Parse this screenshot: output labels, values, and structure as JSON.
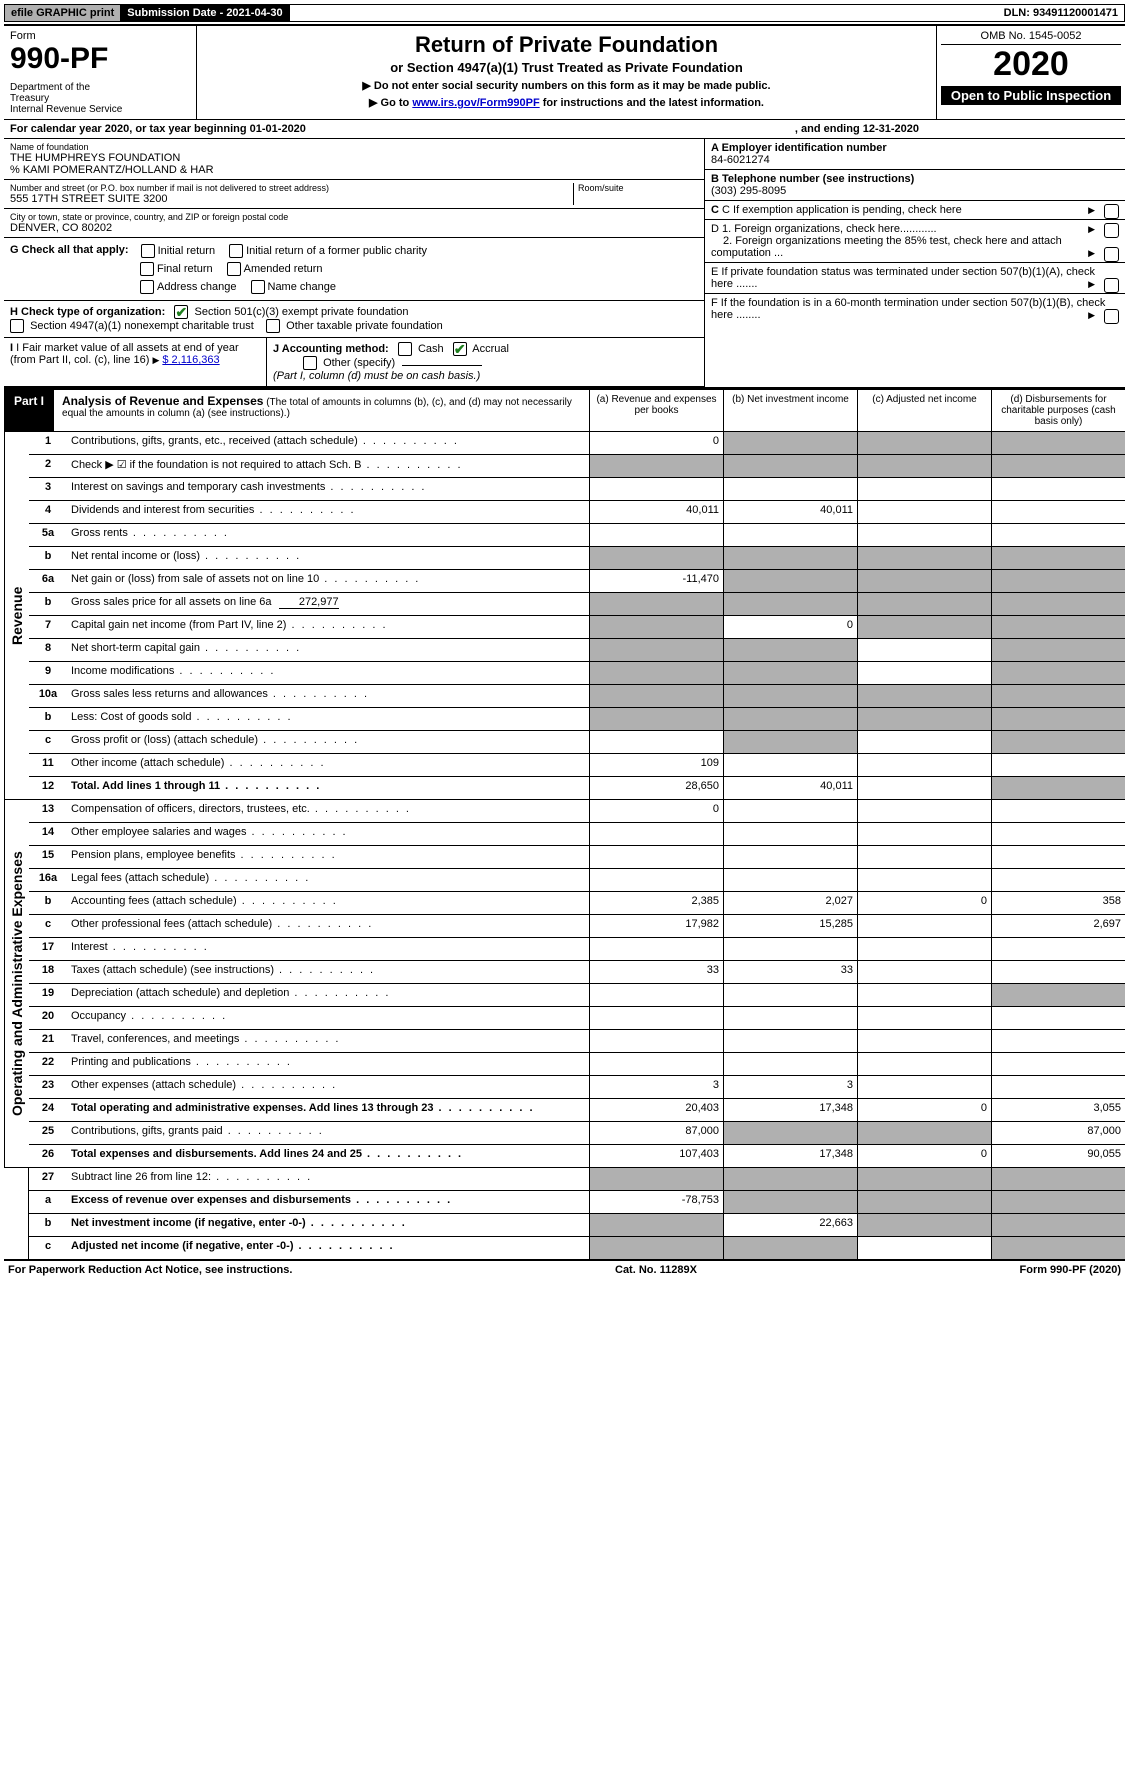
{
  "topbar": {
    "efile": "efile GRAPHIC print",
    "subdate": "Submission Date - 2021-04-30",
    "dln": "DLN: 93491120001471"
  },
  "header": {
    "form_label": "Form",
    "form_number": "990-PF",
    "dept": "Department of the Treasury\nInternal Revenue Service",
    "title": "Return of Private Foundation",
    "subtitle": "or Section 4947(a)(1) Trust Treated as Private Foundation",
    "note1": "▶ Do not enter social security numbers on this form as it may be made public.",
    "note2_pre": "▶ Go to ",
    "note2_link": "www.irs.gov/Form990PF",
    "note2_post": " for instructions and the latest information.",
    "omb": "OMB No. 1545-0052",
    "year": "2020",
    "open": "Open to Public Inspection"
  },
  "cal": {
    "pre": "For calendar year 2020, or tax year beginning 01-01-2020",
    "end": ", and ending 12-31-2020"
  },
  "ident": {
    "name_lbl": "Name of foundation",
    "name": "THE HUMPHREYS FOUNDATION",
    "care_of": "% KAMI POMERANTZ/HOLLAND & HAR",
    "addr_lbl": "Number and street (or P.O. box number if mail is not delivered to street address)",
    "addr": "555 17TH STREET SUITE 3200",
    "room_lbl": "Room/suite",
    "city_lbl": "City or town, state or province, country, and ZIP or foreign postal code",
    "city": "DENVER, CO  80202",
    "a_lbl": "A Employer identification number",
    "a_val": "84-6021274",
    "b_lbl": "B Telephone number (see instructions)",
    "b_val": "(303) 295-8095",
    "c_lbl": "C If exemption application is pending, check here",
    "d1": "D 1. Foreign organizations, check here............",
    "d2": "2. Foreign organizations meeting the 85% test, check here and attach computation ...",
    "e": "E  If private foundation status was terminated under section 507(b)(1)(A), check here .......",
    "f": "F  If the foundation is in a 60-month termination under section 507(b)(1)(B), check here ........"
  },
  "checks": {
    "g_lbl": "G Check all that apply:",
    "initial": "Initial return",
    "initial_former": "Initial return of a former public charity",
    "final": "Final return",
    "amended": "Amended return",
    "addr_change": "Address change",
    "name_change": "Name change",
    "h_lbl": "H Check type of organization:",
    "h1": "Section 501(c)(3) exempt private foundation",
    "h2": "Section 4947(a)(1) nonexempt charitable trust",
    "h3": "Other taxable private foundation",
    "i_lbl": "I Fair market value of all assets at end of year (from Part II, col. (c), line 16)",
    "i_val": "$  2,116,363",
    "j_lbl": "J Accounting method:",
    "j_cash": "Cash",
    "j_accrual": "Accrual",
    "j_other": "Other (specify)",
    "j_note": "(Part I, column (d) must be on cash basis.)"
  },
  "part1": {
    "label": "Part I",
    "title": "Analysis of Revenue and Expenses",
    "title_note": "(The total of amounts in columns (b), (c), and (d) may not necessarily equal the amounts in column (a) (see instructions).)",
    "col_a": "(a)    Revenue and expenses per books",
    "col_b": "(b)   Net investment income",
    "col_c": "(c)   Adjusted net income",
    "col_d": "(d)   Disbursements for charitable purposes (cash basis only)"
  },
  "sections": {
    "revenue": "Revenue",
    "expenses": "Operating and Administrative Expenses"
  },
  "rows": {
    "r1": {
      "n": "1",
      "d": "Contributions, gifts, grants, etc., received (attach schedule)",
      "a": "0"
    },
    "r2": {
      "n": "2",
      "d": "Check ▶ ☑ if the foundation is not required to attach Sch. B"
    },
    "r3": {
      "n": "3",
      "d": "Interest on savings and temporary cash investments"
    },
    "r4": {
      "n": "4",
      "d": "Dividends and interest from securities",
      "a": "40,011",
      "b": "40,011"
    },
    "r5a": {
      "n": "5a",
      "d": "Gross rents"
    },
    "r5b": {
      "n": "b",
      "d": "Net rental income or (loss)"
    },
    "r6a": {
      "n": "6a",
      "d": "Net gain or (loss) from sale of assets not on line 10",
      "a": "-11,470"
    },
    "r6b": {
      "n": "b",
      "d": "Gross sales price for all assets on line 6a",
      "v": "272,977"
    },
    "r7": {
      "n": "7",
      "d": "Capital gain net income (from Part IV, line 2)",
      "b": "0"
    },
    "r8": {
      "n": "8",
      "d": "Net short-term capital gain"
    },
    "r9": {
      "n": "9",
      "d": "Income modifications"
    },
    "r10a": {
      "n": "10a",
      "d": "Gross sales less returns and allowances"
    },
    "r10b": {
      "n": "b",
      "d": "Less: Cost of goods sold"
    },
    "r10c": {
      "n": "c",
      "d": "Gross profit or (loss) (attach schedule)"
    },
    "r11": {
      "n": "11",
      "d": "Other income (attach schedule)",
      "a": "109"
    },
    "r12": {
      "n": "12",
      "d": "Total. Add lines 1 through 11",
      "a": "28,650",
      "b": "40,011",
      "bold": true
    },
    "r13": {
      "n": "13",
      "d": "Compensation of officers, directors, trustees, etc.",
      "a": "0"
    },
    "r14": {
      "n": "14",
      "d": "Other employee salaries and wages"
    },
    "r15": {
      "n": "15",
      "d": "Pension plans, employee benefits"
    },
    "r16a": {
      "n": "16a",
      "d": "Legal fees (attach schedule)"
    },
    "r16b": {
      "n": "b",
      "d": "Accounting fees (attach schedule)",
      "a": "2,385",
      "b": "2,027",
      "c": "0",
      "dd": "358"
    },
    "r16c": {
      "n": "c",
      "d": "Other professional fees (attach schedule)",
      "a": "17,982",
      "b": "15,285",
      "dd": "2,697"
    },
    "r17": {
      "n": "17",
      "d": "Interest"
    },
    "r18": {
      "n": "18",
      "d": "Taxes (attach schedule) (see instructions)",
      "a": "33",
      "b": "33"
    },
    "r19": {
      "n": "19",
      "d": "Depreciation (attach schedule) and depletion"
    },
    "r20": {
      "n": "20",
      "d": "Occupancy"
    },
    "r21": {
      "n": "21",
      "d": "Travel, conferences, and meetings"
    },
    "r22": {
      "n": "22",
      "d": "Printing and publications"
    },
    "r23": {
      "n": "23",
      "d": "Other expenses (attach schedule)",
      "a": "3",
      "b": "3"
    },
    "r24": {
      "n": "24",
      "d": "Total operating and administrative expenses. Add lines 13 through 23",
      "a": "20,403",
      "b": "17,348",
      "c": "0",
      "dd": "3,055",
      "bold": true
    },
    "r25": {
      "n": "25",
      "d": "Contributions, gifts, grants paid",
      "a": "87,000",
      "dd": "87,000"
    },
    "r26": {
      "n": "26",
      "d": "Total expenses and disbursements. Add lines 24 and 25",
      "a": "107,403",
      "b": "17,348",
      "c": "0",
      "dd": "90,055",
      "bold": true
    },
    "r27": {
      "n": "27",
      "d": "Subtract line 26 from line 12:"
    },
    "r27a": {
      "n": "a",
      "d": "Excess of revenue over expenses and disbursements",
      "a": "-78,753",
      "bold": true
    },
    "r27b": {
      "n": "b",
      "d": "Net investment income (if negative, enter -0-)",
      "b": "22,663",
      "bold": true
    },
    "r27c": {
      "n": "c",
      "d": "Adjusted net income (if negative, enter -0-)",
      "bold": true
    }
  },
  "footer": {
    "left": "For Paperwork Reduction Act Notice, see instructions.",
    "mid": "Cat. No. 11289X",
    "right": "Form 990-PF (2020)"
  }
}
